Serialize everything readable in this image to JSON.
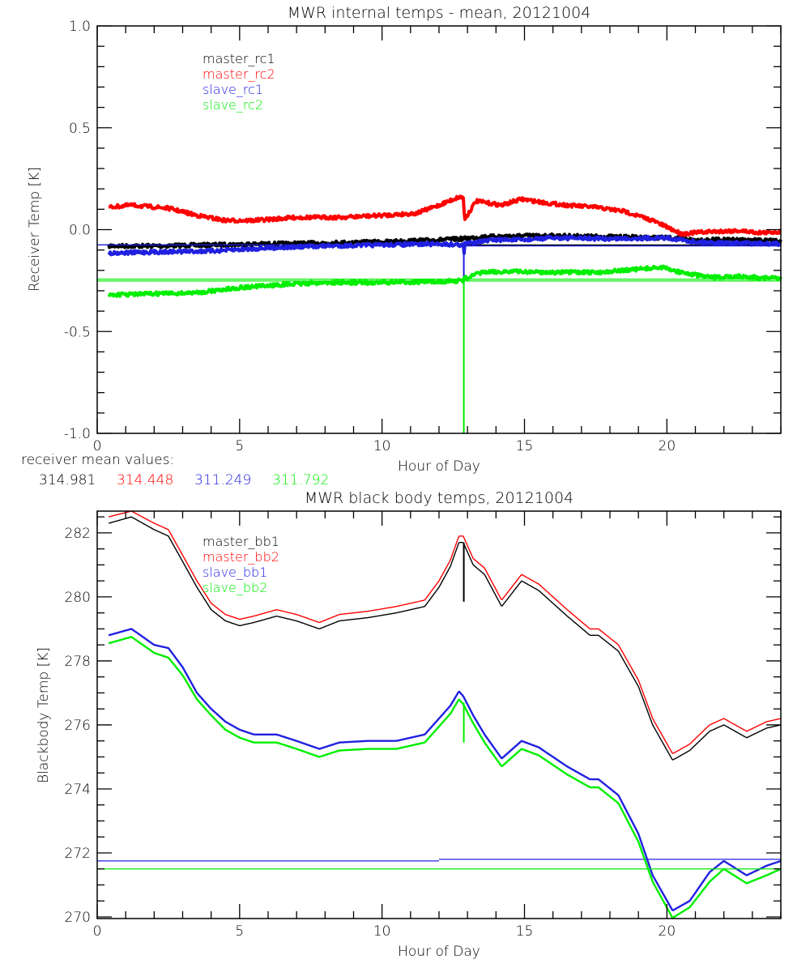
{
  "chart_data": [
    {
      "type": "line",
      "title": "MWR internal temps - mean, 20121004",
      "xlabel": "Hour of Day",
      "ylabel": "Receiver Temp [K]",
      "xlim": [
        0,
        24
      ],
      "ylim": [
        -1.0,
        1.0
      ],
      "xticks": [
        "0",
        "5",
        "10",
        "15",
        "20"
      ],
      "xtick_values": [
        0,
        5,
        10,
        15,
        20
      ],
      "yticks": [
        "-1.0",
        "-0.5",
        "0.0",
        "0.5",
        "1.0"
      ],
      "ytick_values": [
        -1.0,
        -0.5,
        0.0,
        0.5,
        1.0
      ],
      "grid": false,
      "legend_position": "top-left-inside",
      "series": [
        {
          "name": "master_rc1",
          "color": "#000000",
          "noisy": true,
          "x": [
            0.4,
            2,
            4,
            6,
            8,
            10,
            12,
            12.8,
            13.5,
            15,
            16,
            18,
            20,
            21,
            22,
            24
          ],
          "y": [
            -0.08,
            -0.08,
            -0.075,
            -0.07,
            -0.065,
            -0.06,
            -0.05,
            -0.045,
            -0.035,
            -0.03,
            -0.03,
            -0.035,
            -0.04,
            -0.05,
            -0.05,
            -0.055
          ],
          "flat": [
            {
              "x0": 0,
              "x1": 24,
              "y": -0.075
            }
          ]
        },
        {
          "name": "master_rc2",
          "color": "#ff0000",
          "noisy": true,
          "x": [
            0.4,
            1.2,
            2.5,
            3.5,
            4.5,
            5.5,
            7,
            8.5,
            10,
            11.2,
            12,
            12.7,
            12.85,
            12.9,
            13.3,
            14.2,
            14.9,
            15.8,
            16.5,
            17.5,
            18.5,
            19.5,
            20.5,
            21.5,
            22.5,
            23.3,
            24
          ],
          "y": [
            0.11,
            0.12,
            0.105,
            0.07,
            0.045,
            0.045,
            0.06,
            0.06,
            0.07,
            0.08,
            0.12,
            0.16,
            0.16,
            0.05,
            0.14,
            0.12,
            0.15,
            0.13,
            0.12,
            0.11,
            0.09,
            0.045,
            -0.02,
            -0.01,
            -0.005,
            -0.015,
            -0.01
          ]
        },
        {
          "name": "slave_rc1",
          "color": "#2020e0",
          "noisy": true,
          "x": [
            0.4,
            2,
            4,
            6,
            8,
            10,
            12,
            12.85,
            12.88,
            12.9,
            13.3,
            14,
            15,
            16,
            18,
            20,
            21,
            22,
            24
          ],
          "y": [
            -0.115,
            -0.11,
            -0.105,
            -0.09,
            -0.08,
            -0.075,
            -0.07,
            -0.075,
            -0.12,
            -0.07,
            -0.06,
            -0.05,
            -0.05,
            -0.04,
            -0.045,
            -0.04,
            -0.06,
            -0.065,
            -0.07
          ],
          "spike": {
            "x": 12.87,
            "y0": -0.07,
            "y1": -0.27
          },
          "flat": [
            {
              "x0": 0,
              "x1": 12.87,
              "y": -0.075
            },
            {
              "x0": 12.87,
              "x1": 24,
              "y": -0.08
            }
          ]
        },
        {
          "name": "slave_rc2",
          "color": "#00ee00",
          "noisy": true,
          "x": [
            0.4,
            2,
            3.5,
            5,
            6.5,
            8,
            10,
            12,
            12.85,
            12.9,
            13.5,
            14.5,
            16,
            17.5,
            18.5,
            19.8,
            20.5,
            21.5,
            22.5,
            24
          ],
          "y": [
            -0.32,
            -0.315,
            -0.31,
            -0.285,
            -0.27,
            -0.26,
            -0.26,
            -0.255,
            -0.25,
            -0.24,
            -0.21,
            -0.205,
            -0.21,
            -0.21,
            -0.2,
            -0.185,
            -0.21,
            -0.235,
            -0.23,
            -0.24
          ],
          "spike": {
            "x": 12.87,
            "y0": -0.25,
            "y1": -1.0
          },
          "flat": [
            {
              "x0": 0,
              "x1": 24,
              "y": -0.243
            },
            {
              "x0": 0,
              "x1": 24,
              "y": -0.252
            }
          ]
        }
      ],
      "annotation": {
        "label": "receiver mean values:",
        "values": [
          {
            "text": "314.981",
            "color": "#000000"
          },
          {
            "text": "314.448",
            "color": "#ff0000"
          },
          {
            "text": "311.249",
            "color": "#2020e0"
          },
          {
            "text": "311.792",
            "color": "#00ee00"
          }
        ]
      }
    },
    {
      "type": "line",
      "title": "MWR black body temps, 20121004",
      "xlabel": "Hour of Day",
      "ylabel": "Blackbody Temp [K]",
      "xlim": [
        0,
        24
      ],
      "ylim": [
        269.95,
        282.68
      ],
      "xticks": [
        "0",
        "5",
        "10",
        "15",
        "20"
      ],
      "xtick_values": [
        0,
        5,
        10,
        15,
        20
      ],
      "yticks": [
        "270",
        "272",
        "274",
        "276",
        "278",
        "280",
        "282"
      ],
      "ytick_values": [
        270,
        272,
        274,
        276,
        278,
        280,
        282
      ],
      "grid": false,
      "legend_position": "top-left-inside",
      "series": [
        {
          "name": "master_bb1",
          "color": "#000000",
          "x": [
            0.4,
            1.2,
            2.0,
            2.5,
            3.0,
            3.5,
            4.0,
            4.5,
            5.0,
            5.5,
            6.3,
            7.0,
            7.8,
            8.5,
            9.5,
            10.5,
            11.5,
            12.0,
            12.4,
            12.7,
            12.85,
            13.2,
            13.6,
            14.2,
            14.9,
            15.5,
            16.5,
            17.3,
            17.6,
            18.3,
            19.0,
            19.5,
            20.2,
            20.8,
            21.5,
            22.0,
            22.8,
            23.5,
            24
          ],
          "y": [
            282.3,
            282.5,
            282.1,
            281.9,
            281.1,
            280.3,
            279.6,
            279.25,
            279.1,
            279.2,
            279.4,
            279.25,
            279.0,
            279.25,
            279.35,
            279.5,
            279.7,
            280.3,
            280.95,
            281.7,
            281.7,
            281.0,
            280.7,
            279.7,
            280.5,
            280.2,
            279.4,
            278.8,
            278.8,
            278.3,
            277.2,
            276.0,
            274.9,
            275.2,
            275.8,
            276.0,
            275.6,
            275.9,
            276.0
          ],
          "spike": {
            "x": 12.87,
            "y0": 281.7,
            "y1": 279.85
          }
        },
        {
          "name": "master_bb2",
          "color": "#ff0000",
          "x": [
            0.4,
            1.2,
            2.0,
            2.5,
            3.0,
            3.5,
            4.0,
            4.5,
            5.0,
            5.5,
            6.3,
            7.0,
            7.8,
            8.5,
            9.5,
            10.5,
            11.5,
            12.0,
            12.4,
            12.7,
            12.85,
            13.2,
            13.6,
            14.2,
            14.9,
            15.5,
            16.5,
            17.3,
            17.6,
            18.3,
            19.0,
            19.5,
            20.2,
            20.8,
            21.5,
            22.0,
            22.8,
            23.5,
            24
          ],
          "y": [
            282.5,
            282.68,
            282.3,
            282.1,
            281.3,
            280.5,
            279.8,
            279.45,
            279.3,
            279.4,
            279.6,
            279.45,
            279.2,
            279.45,
            279.55,
            279.7,
            279.9,
            280.5,
            281.15,
            281.9,
            281.9,
            281.2,
            280.9,
            279.9,
            280.7,
            280.4,
            279.6,
            279.0,
            279.0,
            278.5,
            277.4,
            276.2,
            275.1,
            275.4,
            276.0,
            276.2,
            275.8,
            276.1,
            276.2
          ]
        },
        {
          "name": "slave_bb1",
          "color": "#2020e0",
          "x": [
            0.4,
            1.2,
            2.0,
            2.5,
            3.0,
            3.5,
            4.0,
            4.5,
            5.0,
            5.5,
            6.3,
            7.0,
            7.8,
            8.5,
            9.5,
            10.5,
            11.5,
            12.0,
            12.4,
            12.7,
            12.85,
            13.2,
            13.6,
            14.2,
            14.9,
            15.5,
            16.5,
            17.3,
            17.6,
            18.3,
            19.0,
            19.5,
            20.2,
            20.8,
            21.5,
            22.0,
            22.8,
            23.5,
            24
          ],
          "y": [
            278.8,
            279.0,
            278.5,
            278.4,
            277.8,
            277.0,
            276.5,
            276.1,
            275.85,
            275.7,
            275.7,
            275.5,
            275.25,
            275.45,
            275.5,
            275.5,
            275.7,
            276.2,
            276.6,
            277.05,
            276.9,
            276.3,
            275.7,
            274.95,
            275.5,
            275.3,
            274.7,
            274.3,
            274.3,
            273.8,
            272.6,
            271.3,
            270.2,
            270.5,
            271.4,
            271.75,
            271.3,
            271.6,
            271.75
          ],
          "flat": [
            {
              "x0": 0,
              "x1": 12,
              "y": 271.75
            },
            {
              "x0": 12,
              "x1": 24,
              "y": 271.8
            }
          ]
        },
        {
          "name": "slave_bb2",
          "color": "#00ee00",
          "x": [
            0.4,
            1.2,
            2.0,
            2.5,
            3.0,
            3.5,
            4.0,
            4.5,
            5.0,
            5.5,
            6.3,
            7.0,
            7.8,
            8.5,
            9.5,
            10.5,
            11.5,
            12.0,
            12.4,
            12.7,
            12.85,
            13.2,
            13.6,
            14.2,
            14.9,
            15.5,
            16.5,
            17.3,
            17.6,
            18.3,
            19.0,
            19.5,
            20.2,
            20.8,
            21.5,
            22.0,
            22.8,
            23.5,
            24
          ],
          "y": [
            278.55,
            278.75,
            278.25,
            278.1,
            277.55,
            276.8,
            276.3,
            275.85,
            275.6,
            275.45,
            275.45,
            275.25,
            275.0,
            275.2,
            275.25,
            275.25,
            275.45,
            275.95,
            276.35,
            276.8,
            276.65,
            276.05,
            275.45,
            274.7,
            275.25,
            275.05,
            274.45,
            274.05,
            274.05,
            273.55,
            272.35,
            271.1,
            269.97,
            270.3,
            271.1,
            271.5,
            271.05,
            271.3,
            271.5
          ],
          "spike": {
            "x": 12.87,
            "y0": 276.7,
            "y1": 275.45
          },
          "flat": [
            {
              "x0": 0,
              "x1": 24,
              "y": 271.5
            }
          ]
        }
      ]
    }
  ]
}
